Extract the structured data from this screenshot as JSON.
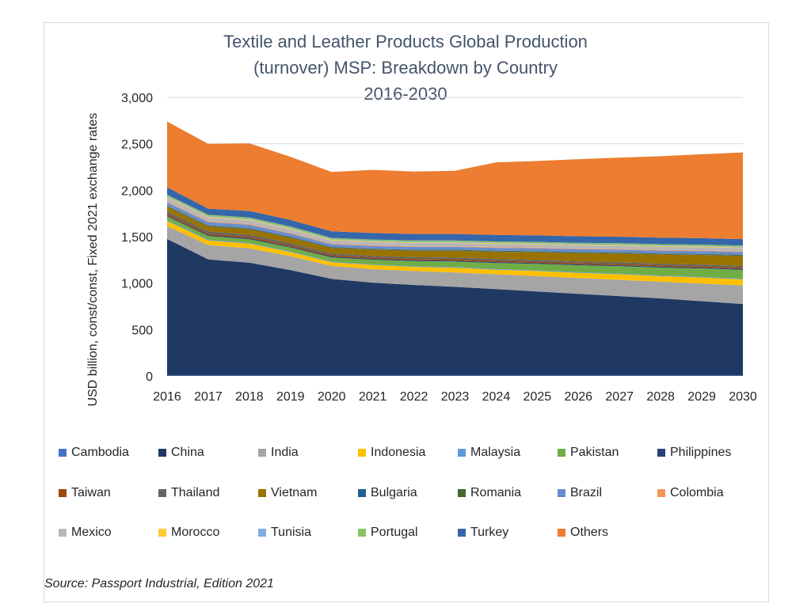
{
  "chart_data": {
    "type": "area",
    "stacked": true,
    "title_lines": [
      "Textile and Leather Products Global Production",
      "(turnover) MSP: Breakdown by Country",
      "2016-2030"
    ],
    "xlabel": "",
    "ylabel": "USD billion, const/const, Fixed 2021 exchange rates",
    "ylim": [
      0,
      3000
    ],
    "yticks": [
      0,
      500,
      1000,
      1500,
      2000,
      2500,
      3000
    ],
    "ytick_labels": [
      "0",
      "500",
      "1,000",
      "1,500",
      "2,000",
      "2,500",
      "3,000"
    ],
    "grid": true,
    "legend_position": "bottom",
    "categories": [
      "2016",
      "2017",
      "2018",
      "2019",
      "2020",
      "2021",
      "2022",
      "2023",
      "2024",
      "2025",
      "2026",
      "2027",
      "2028",
      "2029",
      "2030"
    ],
    "series": [
      {
        "name": "Cambodia",
        "color": "#4472c4",
        "values": [
          5,
          5,
          5,
          5,
          5,
          5,
          5,
          5,
          5,
          5,
          5,
          5,
          5,
          5,
          5
        ]
      },
      {
        "name": "China",
        "color": "#203864",
        "values": [
          1470,
          1250,
          1215,
          1135,
          1040,
          1000,
          975,
          955,
          930,
          905,
          880,
          855,
          830,
          800,
          770
        ]
      },
      {
        "name": "India",
        "color": "#a5a5a5",
        "values": [
          140,
          155,
          155,
          150,
          140,
          145,
          150,
          155,
          160,
          165,
          170,
          175,
          180,
          190,
          200
        ]
      },
      {
        "name": "Indonesia",
        "color": "#ffc000",
        "values": [
          55,
          50,
          50,
          45,
          40,
          45,
          45,
          50,
          50,
          55,
          55,
          60,
          60,
          65,
          65
        ]
      },
      {
        "name": "Malaysia",
        "color": "#5b9bd5",
        "values": [
          8,
          8,
          8,
          8,
          7,
          7,
          7,
          7,
          7,
          7,
          7,
          7,
          7,
          7,
          7
        ]
      },
      {
        "name": "Pakistan",
        "color": "#70ad47",
        "values": [
          40,
          40,
          40,
          40,
          45,
          50,
          55,
          60,
          65,
          70,
          75,
          80,
          85,
          90,
          95
        ]
      },
      {
        "name": "Philippines",
        "color": "#264478",
        "values": [
          10,
          10,
          10,
          10,
          10,
          10,
          10,
          10,
          10,
          10,
          10,
          10,
          10,
          10,
          10
        ]
      },
      {
        "name": "Taiwan",
        "color": "#9e480e",
        "values": [
          18,
          16,
          16,
          15,
          14,
          14,
          14,
          14,
          14,
          14,
          14,
          14,
          14,
          14,
          14
        ]
      },
      {
        "name": "Thailand",
        "color": "#636363",
        "values": [
          25,
          22,
          22,
          20,
          18,
          18,
          18,
          18,
          18,
          18,
          18,
          18,
          18,
          18,
          18
        ]
      },
      {
        "name": "Vietnam",
        "color": "#997300",
        "values": [
          50,
          55,
          60,
          60,
          60,
          65,
          70,
          75,
          80,
          85,
          90,
          95,
          100,
          105,
          110
        ]
      },
      {
        "name": "Bulgaria",
        "color": "#255e91",
        "values": [
          5,
          5,
          5,
          5,
          5,
          5,
          5,
          5,
          5,
          5,
          5,
          5,
          5,
          5,
          5
        ]
      },
      {
        "name": "Romania",
        "color": "#43682b",
        "values": [
          7,
          7,
          7,
          7,
          6,
          6,
          6,
          6,
          6,
          6,
          6,
          6,
          6,
          6,
          6
        ]
      },
      {
        "name": "Brazil",
        "color": "#698ed0",
        "values": [
          35,
          35,
          35,
          33,
          28,
          30,
          30,
          30,
          30,
          30,
          30,
          30,
          30,
          30,
          30
        ]
      },
      {
        "name": "Colombia",
        "color": "#f1975a",
        "values": [
          8,
          8,
          8,
          8,
          7,
          7,
          7,
          7,
          7,
          7,
          7,
          7,
          7,
          7,
          7
        ]
      },
      {
        "name": "Mexico",
        "color": "#b7b7b7",
        "values": [
          45,
          40,
          40,
          38,
          35,
          35,
          35,
          35,
          35,
          35,
          35,
          35,
          35,
          35,
          35
        ]
      },
      {
        "name": "Morocco",
        "color": "#ffcd33",
        "values": [
          8,
          8,
          8,
          8,
          7,
          7,
          7,
          7,
          7,
          7,
          7,
          7,
          7,
          7,
          7
        ]
      },
      {
        "name": "Tunisia",
        "color": "#7cafdd",
        "values": [
          8,
          8,
          8,
          8,
          7,
          7,
          7,
          7,
          7,
          7,
          7,
          7,
          7,
          7,
          7
        ]
      },
      {
        "name": "Portugal",
        "color": "#8cc168",
        "values": [
          15,
          15,
          15,
          15,
          13,
          13,
          13,
          13,
          13,
          13,
          13,
          13,
          13,
          13,
          13
        ]
      },
      {
        "name": "Turkey",
        "color": "#3566a9",
        "values": [
          80,
          65,
          70,
          70,
          70,
          70,
          70,
          70,
          70,
          70,
          70,
          70,
          70,
          70,
          70
        ]
      },
      {
        "name": "Others",
        "color": "#ed7d31",
        "values": [
          708,
          698,
          728,
          680,
          640,
          680,
          672,
          680,
          781,
          801,
          830,
          852,
          877,
          903,
          933
        ]
      }
    ]
  },
  "source": "Source: Passport Industrial, Edition 2021"
}
